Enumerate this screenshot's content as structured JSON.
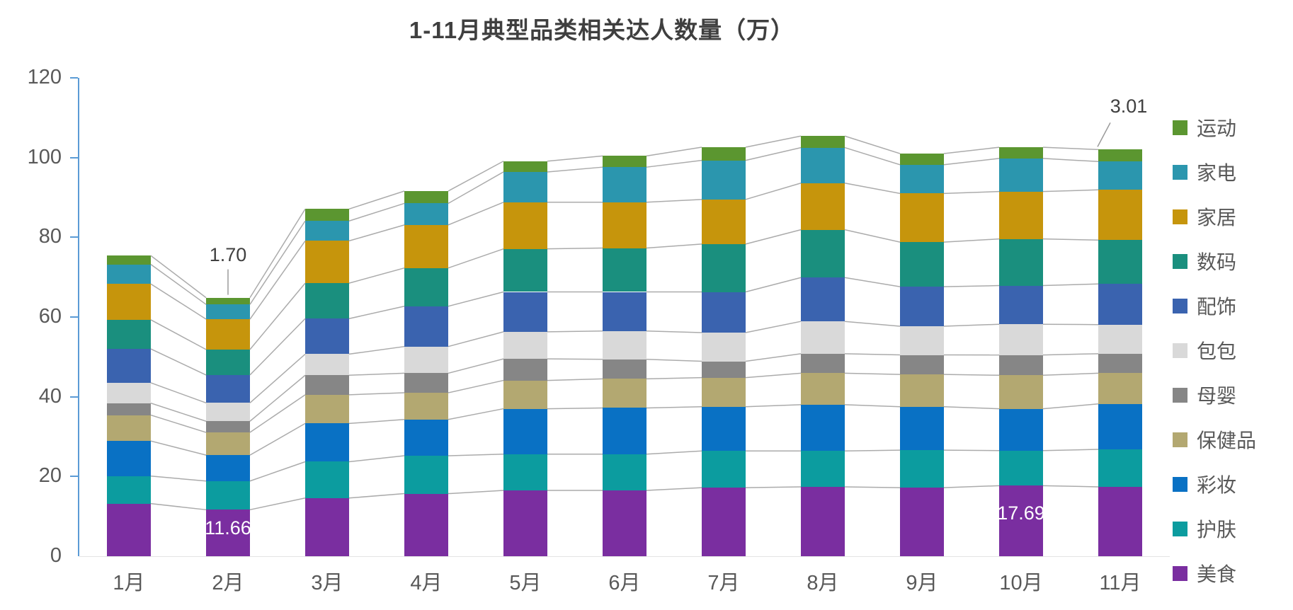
{
  "chart_data": {
    "type": "bar",
    "stacked": true,
    "title": "1-11月典型品类相关达人数量（万）",
    "unit": "万",
    "categories": [
      "1月",
      "2月",
      "3月",
      "4月",
      "5月",
      "6月",
      "7月",
      "8月",
      "9月",
      "10月",
      "11月"
    ],
    "series": [
      {
        "name": "美食",
        "color": "#7A2EA0",
        "values": [
          13.2,
          11.66,
          14.6,
          15.7,
          16.5,
          16.5,
          17.2,
          17.4,
          17.2,
          17.69,
          17.4
        ]
      },
      {
        "name": "护肤",
        "color": "#0C9C9F",
        "values": [
          6.9,
          7.2,
          9.1,
          9.5,
          9.1,
          9.1,
          9.2,
          9.0,
          9.4,
          8.8,
          9.4
        ]
      },
      {
        "name": "彩妆",
        "color": "#0971C4",
        "values": [
          8.8,
          6.5,
          9.6,
          9.1,
          11.4,
          11.6,
          11.1,
          11.6,
          10.9,
          10.5,
          11.4
        ]
      },
      {
        "name": "保健品",
        "color": "#B3A871",
        "values": [
          6.5,
          5.7,
          7.2,
          6.7,
          7.1,
          7.3,
          7.3,
          7.9,
          8.1,
          8.4,
          7.7
        ]
      },
      {
        "name": "母婴",
        "color": "#868686",
        "values": [
          3.0,
          2.8,
          4.9,
          4.9,
          5.4,
          4.9,
          4.1,
          4.9,
          4.9,
          5.1,
          4.9
        ]
      },
      {
        "name": "包包",
        "color": "#D9D9D9",
        "values": [
          5.1,
          4.6,
          5.3,
          6.7,
          6.8,
          7.1,
          7.2,
          8.1,
          7.2,
          7.7,
          7.3
        ]
      },
      {
        "name": "配饰",
        "color": "#3A63AF",
        "values": [
          8.5,
          7.0,
          8.9,
          10.1,
          10.0,
          9.8,
          10.2,
          11.0,
          9.9,
          9.7,
          10.2
        ]
      },
      {
        "name": "数码",
        "color": "#1A8F7E",
        "values": [
          7.3,
          6.4,
          8.9,
          9.6,
          10.8,
          11.0,
          12.0,
          12.0,
          11.2,
          11.7,
          11.0
        ]
      },
      {
        "name": "家居",
        "color": "#C6950C",
        "values": [
          9.0,
          7.6,
          10.6,
          10.8,
          11.7,
          11.5,
          11.2,
          11.7,
          12.2,
          11.9,
          12.6
        ]
      },
      {
        "name": "家电",
        "color": "#2B96AE",
        "values": [
          4.9,
          3.7,
          5.0,
          5.4,
          7.6,
          8.8,
          9.8,
          8.9,
          7.2,
          8.3,
          7.1
        ]
      },
      {
        "name": "运动",
        "color": "#5B9630",
        "values": [
          2.2,
          1.7,
          3.0,
          3.1,
          2.7,
          2.8,
          3.3,
          2.9,
          2.8,
          2.8,
          3.01
        ]
      }
    ],
    "legend_order_top_to_bottom": [
      "运动",
      "家电",
      "家居",
      "数码",
      "配饰",
      "包包",
      "母婴",
      "保健品",
      "彩妆",
      "护肤",
      "美食"
    ],
    "ylim": [
      0,
      120
    ],
    "y_ticks": [
      "0",
      "20",
      "40",
      "60",
      "80",
      "100",
      "120"
    ],
    "grid": false,
    "legend_position": "right",
    "axis_color": "#5B9BD5",
    "tick_label_color": "#595959",
    "connector_line_color": "#ABABAB",
    "annotations": [
      {
        "text": "1.70",
        "category": "2月",
        "series": "运动",
        "placement": "above",
        "color": "#404040"
      },
      {
        "text": "3.01",
        "category": "11月",
        "series": "运动",
        "placement": "above",
        "color": "#404040"
      },
      {
        "text": "11.66",
        "category": "2月",
        "series": "美食",
        "placement": "inside",
        "color": "#FFFFFF"
      },
      {
        "text": "17.69",
        "category": "10月",
        "series": "美食",
        "placement": "inside",
        "color": "#FFFFFF"
      }
    ]
  }
}
